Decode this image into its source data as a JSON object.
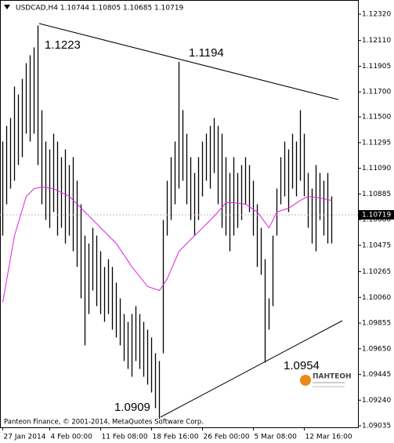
{
  "chart_data": {
    "type": "ohlc",
    "header": "USDCAD,H4  1.10744 1.10805 1.10685 1.10719",
    "footer": "Panteon Finance, © 2001-2014, MetaQuotes Software Corp.",
    "logo": "ПАНТЕОН",
    "annotations": [
      "1.1223",
      "1.1194",
      "1.0954",
      "1.0909"
    ],
    "current_price": 1.10719,
    "color": "#000000",
    "high": [
      1.11304,
      1.11429,
      1.11491,
      1.11742,
      1.11679,
      1.11804,
      1.11929,
      1.11992,
      1.12055,
      1.1223,
      1.11554,
      1.11304,
      1.11241,
      1.11366,
      1.11304,
      1.11179,
      1.11241,
      1.11116,
      1.11179,
      1.10991,
      1.10803,
      1.10553,
      1.1049,
      1.10615,
      1.10553,
      1.10428,
      1.10303,
      1.10365,
      1.10303,
      1.10177,
      1.10052,
      1.09927,
      1.09865,
      1.09927,
      1.0999,
      1.09927,
      1.09865,
      1.09802,
      1.0974,
      1.09614,
      1.09552,
      1.10678,
      1.10991,
      1.11179,
      1.11304,
      1.1194,
      1.11554,
      1.11366,
      1.11179,
      1.11053,
      1.11179,
      1.11304,
      1.11366,
      1.11429,
      1.11491,
      1.11429,
      1.11366,
      1.11179,
      1.11053,
      1.11179,
      1.11053,
      1.11116,
      1.11179,
      1.11116,
      1.10991,
      1.10803,
      1.10615,
      1.10365,
      1.10052,
      1.10553,
      1.10928,
      1.11179,
      1.11304,
      1.11241,
      1.11366,
      1.11304,
      1.11554,
      1.11366,
      1.11053,
      1.10928,
      1.11116,
      1.11053,
      1.10991,
      1.11053,
      1.10866
    ],
    "low": [
      1.10553,
      1.10803,
      1.10928,
      1.10991,
      1.11116,
      1.11179,
      1.11366,
      1.11304,
      1.11366,
      1.11116,
      1.10803,
      1.10678,
      1.10615,
      1.10741,
      1.10553,
      1.10615,
      1.1049,
      1.10553,
      1.10428,
      1.10303,
      1.10052,
      1.09677,
      1.09927,
      1.10115,
      1.0999,
      1.09927,
      1.09865,
      1.09927,
      1.09802,
      1.0974,
      1.09677,
      1.09552,
      1.09489,
      1.09427,
      1.09552,
      1.09489,
      1.09427,
      1.09364,
      1.09301,
      1.09176,
      1.0909,
      1.09614,
      1.10553,
      1.10678,
      1.10803,
      1.10928,
      1.10991,
      1.10803,
      1.10678,
      1.10553,
      1.10678,
      1.10866,
      1.10991,
      1.10928,
      1.11053,
      1.10803,
      1.10615,
      1.10553,
      1.10428,
      1.10553,
      1.10615,
      1.10678,
      1.10803,
      1.10741,
      1.10553,
      1.10303,
      1.1024,
      1.0954,
      1.09802,
      1.0999,
      1.10553,
      1.10803,
      1.10866,
      1.10741,
      1.10928,
      1.10866,
      1.10991,
      1.10866,
      1.10615,
      1.1049,
      1.10428,
      1.10678,
      1.10553,
      1.1049,
      1.1049
    ],
    "ma": {
      "color": "#e020e0",
      "x": [
        0,
        3,
        6,
        8,
        10,
        13,
        17,
        21,
        25,
        29,
        33,
        37,
        40,
        42,
        45,
        48,
        51,
        54,
        57,
        59,
        62,
        65,
        68,
        70,
        73,
        76,
        78,
        81,
        84
      ],
      "values": [
        1.10021,
        1.10553,
        1.10866,
        1.10928,
        1.10941,
        1.10928,
        1.10866,
        1.10741,
        1.10615,
        1.1049,
        1.10303,
        1.10146,
        1.10115,
        1.10209,
        1.10428,
        1.10522,
        1.10615,
        1.10709,
        1.10816,
        1.10816,
        1.10803,
        1.10741,
        1.10615,
        1.10741,
        1.10772,
        1.10834,
        1.10866,
        1.10853,
        1.10834
      ]
    },
    "xlim": [
      -0.6,
      90.8
    ],
    "xticks": [
      {
        "value": 0,
        "label": "27 Jan 2014"
      },
      {
        "value": 12,
        "label": "4 Feb 00:00"
      },
      {
        "value": 25,
        "label": "11 Feb 08:00"
      },
      {
        "value": 38,
        "label": "18 Feb 16:00"
      },
      {
        "value": 51,
        "label": "26 Feb 00:00"
      },
      {
        "value": 64,
        "label": "5 Mar 08:00"
      },
      {
        "value": 77,
        "label": "12 Mar 16:00"
      }
    ],
    "ylim": [
      1.0902,
      1.1243
    ],
    "yticks": [
      {
        "value": 1.1232,
        "label": "1.12320"
      },
      {
        "value": 1.1211,
        "label": "1.12110"
      },
      1.11905,
      {
        "value": 1.117,
        "label": "1.11700"
      },
      {
        "value": 1.115,
        "label": "1.11500"
      },
      1.11295,
      {
        "value": 1.1109,
        "label": "1.11090"
      },
      1.10885,
      {
        "value": 1.1068,
        "label": "1.10680"
      },
      1.10475,
      1.10265,
      {
        "value": 1.1006,
        "label": "1.10060"
      },
      1.09855,
      {
        "value": 1.0965,
        "label": "1.09650"
      },
      1.09445,
      {
        "value": 1.0924,
        "label": "1.09240"
      },
      1.09035
    ]
  }
}
